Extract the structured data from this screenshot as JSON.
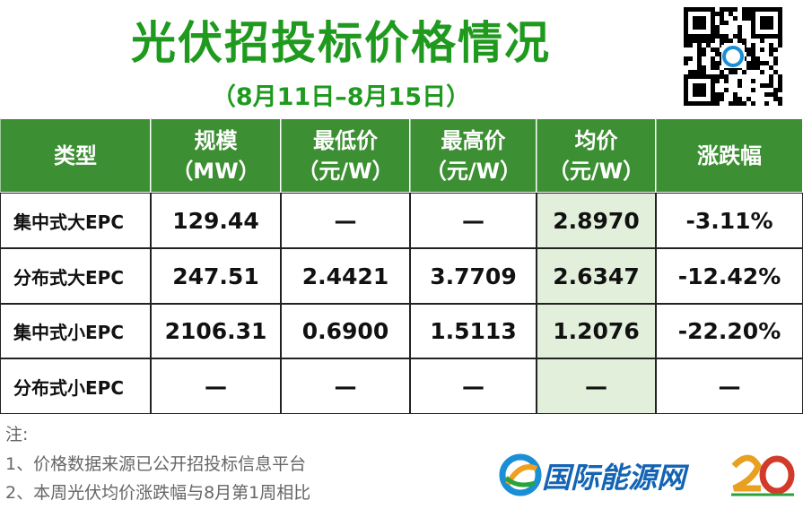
{
  "header": {
    "title": "光伏招投标价格情况",
    "subtitle": "（8月11日–8月15日）"
  },
  "table": {
    "columns": [
      [
        "类型"
      ],
      [
        "规模",
        "（MW）"
      ],
      [
        "最低价",
        "（元/W）"
      ],
      [
        "最高价",
        "（元/W）"
      ],
      [
        "均价",
        "（元/W）"
      ],
      [
        "涨跌幅"
      ]
    ],
    "rows": [
      [
        "集中式大EPC",
        "129.44",
        "—",
        "—",
        "2.8970",
        "-3.11%"
      ],
      [
        "分布式大EPC",
        "247.51",
        "2.4421",
        "3.7709",
        "2.6347",
        "-12.42%"
      ],
      [
        "集中式小EPC",
        "2106.31",
        "0.6900",
        "1.5113",
        "1.2076",
        "-22.20%"
      ],
      [
        "分布式小EPC",
        "—",
        "—",
        "—",
        "—",
        "—"
      ]
    ]
  },
  "notes": {
    "label": "注:",
    "lines": [
      "1、价格数据来源已公开招投标信息平台",
      "2、本周光伏均价涨跌幅与8月第1周相比"
    ]
  },
  "brand": {
    "name": "国际能源网"
  }
}
